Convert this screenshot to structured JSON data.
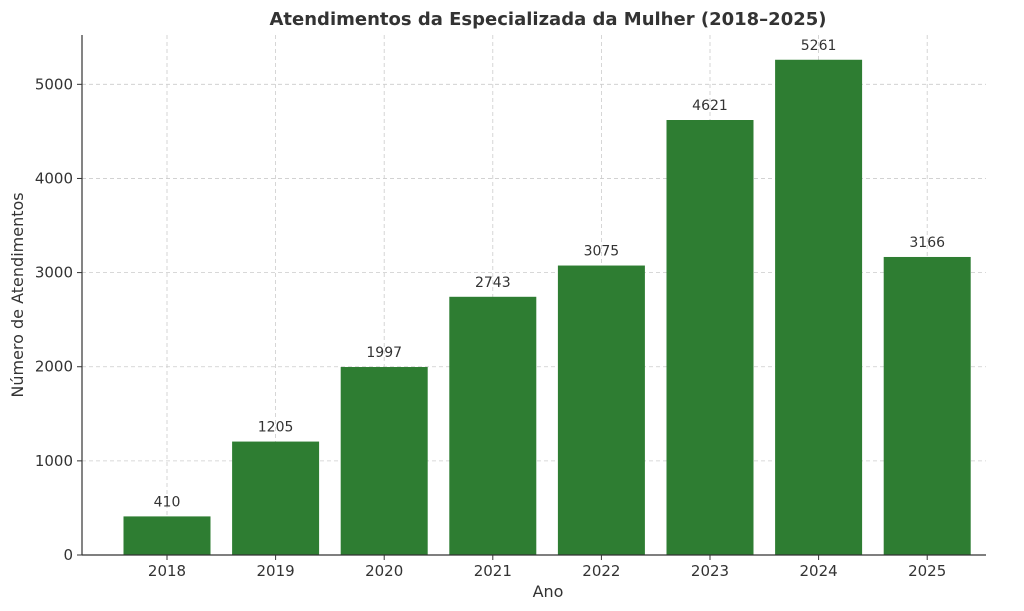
{
  "chart_data": {
    "type": "bar",
    "title": "Atendimentos da Especializada da Mulher (2018–2025)",
    "xlabel": "Ano",
    "ylabel": "Número de Atendimentos",
    "categories": [
      "2018",
      "2019",
      "2020",
      "2021",
      "2022",
      "2023",
      "2024",
      "2025"
    ],
    "values": [
      410,
      1205,
      1997,
      2743,
      3075,
      4621,
      5261,
      3166
    ],
    "data_labels": [
      "410",
      "1205",
      "1997",
      "2743",
      "3075",
      "4621",
      "5261",
      "3166"
    ],
    "yticks": [
      0,
      1000,
      2000,
      3000,
      4000,
      5000
    ],
    "ytick_labels": [
      "0",
      "1000",
      "2000",
      "3000",
      "4000",
      "5000"
    ],
    "ylim": [
      0,
      5524
    ],
    "grid": true,
    "bar_color": "#2e7d32"
  }
}
